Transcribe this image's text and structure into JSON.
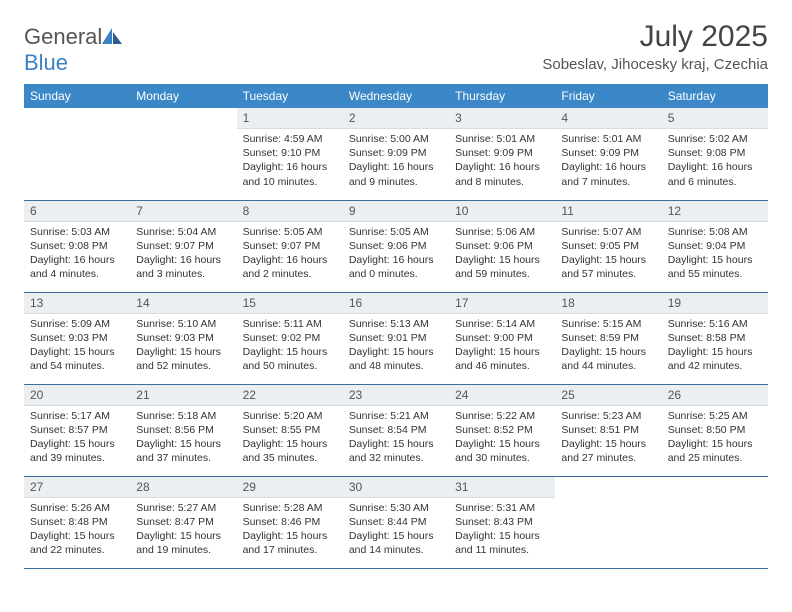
{
  "logo": {
    "text1": "General",
    "text2": "Blue"
  },
  "title": "July 2025",
  "location": "Sobeslav, Jihocesky kraj, Czechia",
  "headers": [
    "Sunday",
    "Monday",
    "Tuesday",
    "Wednesday",
    "Thursday",
    "Friday",
    "Saturday"
  ],
  "colors": {
    "header_bg": "#3b87c8",
    "header_fg": "#ffffff",
    "daynum_bg": "#eceff1",
    "row_border": "#3b6fa0",
    "logo_blue": "#3b7fc4"
  },
  "weeks": [
    [
      null,
      null,
      {
        "n": "1",
        "sunrise": "4:59 AM",
        "sunset": "9:10 PM",
        "daylight": "16 hours and 10 minutes."
      },
      {
        "n": "2",
        "sunrise": "5:00 AM",
        "sunset": "9:09 PM",
        "daylight": "16 hours and 9 minutes."
      },
      {
        "n": "3",
        "sunrise": "5:01 AM",
        "sunset": "9:09 PM",
        "daylight": "16 hours and 8 minutes."
      },
      {
        "n": "4",
        "sunrise": "5:01 AM",
        "sunset": "9:09 PM",
        "daylight": "16 hours and 7 minutes."
      },
      {
        "n": "5",
        "sunrise": "5:02 AM",
        "sunset": "9:08 PM",
        "daylight": "16 hours and 6 minutes."
      }
    ],
    [
      {
        "n": "6",
        "sunrise": "5:03 AM",
        "sunset": "9:08 PM",
        "daylight": "16 hours and 4 minutes."
      },
      {
        "n": "7",
        "sunrise": "5:04 AM",
        "sunset": "9:07 PM",
        "daylight": "16 hours and 3 minutes."
      },
      {
        "n": "8",
        "sunrise": "5:05 AM",
        "sunset": "9:07 PM",
        "daylight": "16 hours and 2 minutes."
      },
      {
        "n": "9",
        "sunrise": "5:05 AM",
        "sunset": "9:06 PM",
        "daylight": "16 hours and 0 minutes."
      },
      {
        "n": "10",
        "sunrise": "5:06 AM",
        "sunset": "9:06 PM",
        "daylight": "15 hours and 59 minutes."
      },
      {
        "n": "11",
        "sunrise": "5:07 AM",
        "sunset": "9:05 PM",
        "daylight": "15 hours and 57 minutes."
      },
      {
        "n": "12",
        "sunrise": "5:08 AM",
        "sunset": "9:04 PM",
        "daylight": "15 hours and 55 minutes."
      }
    ],
    [
      {
        "n": "13",
        "sunrise": "5:09 AM",
        "sunset": "9:03 PM",
        "daylight": "15 hours and 54 minutes."
      },
      {
        "n": "14",
        "sunrise": "5:10 AM",
        "sunset": "9:03 PM",
        "daylight": "15 hours and 52 minutes."
      },
      {
        "n": "15",
        "sunrise": "5:11 AM",
        "sunset": "9:02 PM",
        "daylight": "15 hours and 50 minutes."
      },
      {
        "n": "16",
        "sunrise": "5:13 AM",
        "sunset": "9:01 PM",
        "daylight": "15 hours and 48 minutes."
      },
      {
        "n": "17",
        "sunrise": "5:14 AM",
        "sunset": "9:00 PM",
        "daylight": "15 hours and 46 minutes."
      },
      {
        "n": "18",
        "sunrise": "5:15 AM",
        "sunset": "8:59 PM",
        "daylight": "15 hours and 44 minutes."
      },
      {
        "n": "19",
        "sunrise": "5:16 AM",
        "sunset": "8:58 PM",
        "daylight": "15 hours and 42 minutes."
      }
    ],
    [
      {
        "n": "20",
        "sunrise": "5:17 AM",
        "sunset": "8:57 PM",
        "daylight": "15 hours and 39 minutes."
      },
      {
        "n": "21",
        "sunrise": "5:18 AM",
        "sunset": "8:56 PM",
        "daylight": "15 hours and 37 minutes."
      },
      {
        "n": "22",
        "sunrise": "5:20 AM",
        "sunset": "8:55 PM",
        "daylight": "15 hours and 35 minutes."
      },
      {
        "n": "23",
        "sunrise": "5:21 AM",
        "sunset": "8:54 PM",
        "daylight": "15 hours and 32 minutes."
      },
      {
        "n": "24",
        "sunrise": "5:22 AM",
        "sunset": "8:52 PM",
        "daylight": "15 hours and 30 minutes."
      },
      {
        "n": "25",
        "sunrise": "5:23 AM",
        "sunset": "8:51 PM",
        "daylight": "15 hours and 27 minutes."
      },
      {
        "n": "26",
        "sunrise": "5:25 AM",
        "sunset": "8:50 PM",
        "daylight": "15 hours and 25 minutes."
      }
    ],
    [
      {
        "n": "27",
        "sunrise": "5:26 AM",
        "sunset": "8:48 PM",
        "daylight": "15 hours and 22 minutes."
      },
      {
        "n": "28",
        "sunrise": "5:27 AM",
        "sunset": "8:47 PM",
        "daylight": "15 hours and 19 minutes."
      },
      {
        "n": "29",
        "sunrise": "5:28 AM",
        "sunset": "8:46 PM",
        "daylight": "15 hours and 17 minutes."
      },
      {
        "n": "30",
        "sunrise": "5:30 AM",
        "sunset": "8:44 PM",
        "daylight": "15 hours and 14 minutes."
      },
      {
        "n": "31",
        "sunrise": "5:31 AM",
        "sunset": "8:43 PM",
        "daylight": "15 hours and 11 minutes."
      },
      null,
      null
    ]
  ],
  "labels": {
    "sunrise": "Sunrise:",
    "sunset": "Sunset:",
    "daylight": "Daylight:"
  }
}
